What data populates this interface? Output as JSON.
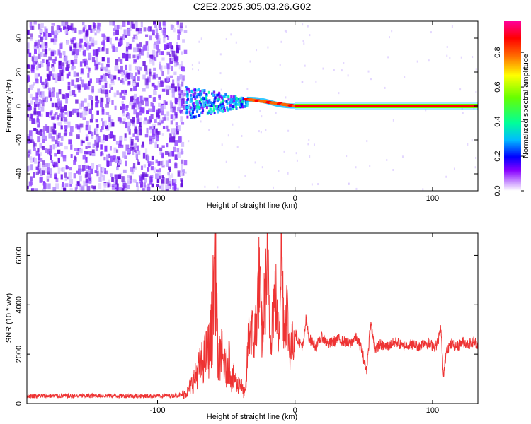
{
  "title": "C2E2.2025.305.03.26.G02",
  "colors": {
    "snr_line": "#ee3333",
    "scatter_purple": "#7722ee",
    "colorbar_stops": [
      "#ffffff",
      "#cc99ff",
      "#8800ff",
      "#0000ff",
      "#00bbff",
      "#00ff99",
      "#66ff00",
      "#ffff00",
      "#ff6600",
      "#ff0000",
      "#ff0099"
    ]
  },
  "chart_data": [
    {
      "type": "heatmap",
      "title": "C2E2.2025.305.03.26.G02",
      "xlabel": "Height of straight line (km)",
      "ylabel": "Frequency (Hz)",
      "xlim": [
        -195,
        133
      ],
      "ylim": [
        -50,
        50
      ],
      "xticks": [
        -100,
        0,
        100
      ],
      "xtick_labels": [
        "-100",
        "0",
        "100"
      ],
      "yticks": [
        -40,
        -20,
        0,
        20,
        40
      ],
      "ytick_labels": [
        "-40",
        "-20",
        "0",
        "20",
        "40"
      ],
      "grid": false,
      "colorbar": {
        "label": "Normalized spectral amplitude",
        "range": [
          0,
          0.98
        ],
        "ticks": [
          0,
          0.2,
          0.4,
          0.6,
          0.8
        ],
        "tick_labels": [
          "0.0",
          "0.2",
          "0.4",
          "0.6",
          "0.8"
        ]
      },
      "regions": [
        {
          "description": "noise",
          "x_range": [
            -195,
            -80
          ],
          "frequency_range": [
            -50,
            50
          ],
          "amplitude": [
            0.05,
            0.2
          ]
        },
        {
          "description": "transition",
          "x_range": [
            -80,
            -35
          ],
          "frequency_range": [
            -10,
            10
          ],
          "amplitude": [
            0.2,
            0.45
          ]
        },
        {
          "description": "drifting carrier",
          "x_range": [
            -35,
            0
          ],
          "frequency_center": [
            4,
            0
          ],
          "amplitude": [
            0.6,
            0.9
          ]
        },
        {
          "description": "steady carrier",
          "x_range": [
            0,
            133
          ],
          "frequency_center": 0,
          "amplitude": 0.95
        }
      ]
    },
    {
      "type": "line",
      "xlabel": "Height of straight line (km)",
      "ylabel": "SNR (10 * v/v)",
      "xlim": [
        -195,
        133
      ],
      "ylim": [
        0,
        6900
      ],
      "xticks": [
        -100,
        0,
        100
      ],
      "xtick_labels": [
        "-100",
        "0",
        "100"
      ],
      "yticks": [
        0,
        2000,
        4000,
        6000
      ],
      "ytick_labels": [
        "0",
        "2000",
        "4000",
        "6000"
      ],
      "grid": false,
      "series": [
        {
          "color": "#ee3333",
          "x": [
            -195,
            -180,
            -160,
            -140,
            -120,
            -100,
            -90,
            -82,
            -78,
            -74,
            -70,
            -66,
            -62,
            -60,
            -58,
            -56,
            -54,
            -52,
            -50,
            -48,
            -46,
            -44,
            -42,
            -40,
            -38,
            -36,
            -34,
            -32,
            -30,
            -28,
            -26,
            -24,
            -22,
            -20,
            -18,
            -16,
            -14,
            -12,
            -10,
            -8,
            -6,
            -4,
            -2,
            0,
            2,
            4,
            6,
            8,
            10,
            12,
            14,
            16,
            18,
            20,
            24,
            28,
            32,
            36,
            40,
            44,
            48,
            52,
            55,
            58,
            62,
            66,
            70,
            74,
            78,
            82,
            86,
            90,
            94,
            98,
            102,
            104,
            106,
            108,
            110,
            114,
            118,
            122,
            126,
            130,
            133
          ],
          "y": [
            300,
            310,
            300,
            320,
            310,
            300,
            320,
            350,
            500,
            900,
            1400,
            1800,
            2300,
            3400,
            6600,
            1400,
            2200,
            1600,
            1300,
            1900,
            900,
            1100,
            700,
            900,
            500,
            400,
            2600,
            3200,
            2400,
            3500,
            5200,
            2700,
            4200,
            5600,
            2700,
            3800,
            4300,
            2600,
            6400,
            3100,
            4000,
            2100,
            2400,
            2900,
            2600,
            2400,
            2300,
            3400,
            2700,
            2500,
            2400,
            2300,
            2600,
            2700,
            2400,
            2500,
            2600,
            2500,
            2400,
            2700,
            2300,
            1300,
            3300,
            2200,
            2400,
            2300,
            2400,
            2500,
            2300,
            2400,
            2400,
            2300,
            2500,
            2400,
            2300,
            2500,
            3100,
            1000,
            2200,
            2400,
            2300,
            2500,
            2400,
            2500,
            2400
          ]
        }
      ]
    }
  ]
}
